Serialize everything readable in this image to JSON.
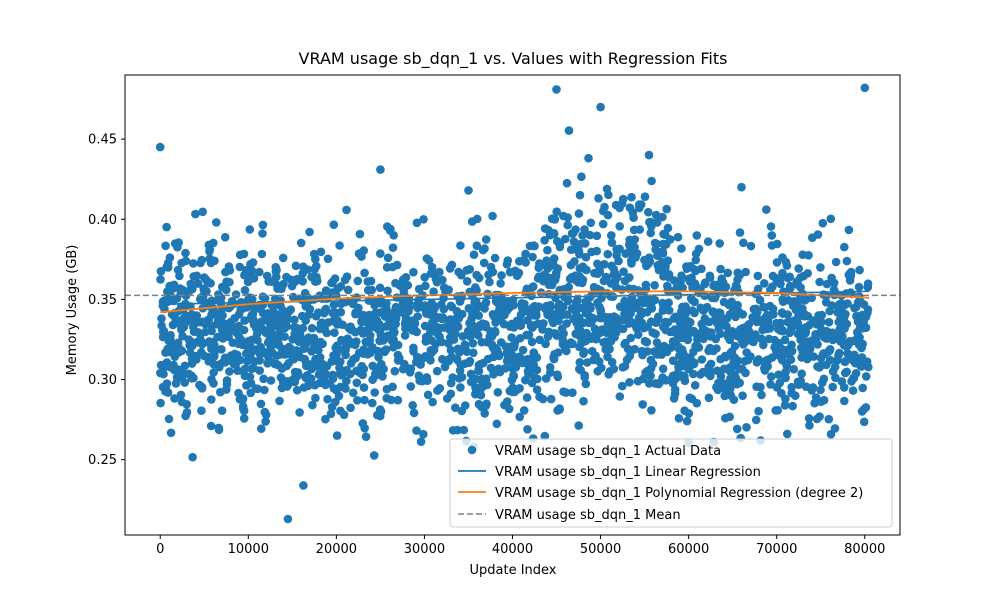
{
  "chart_data": {
    "type": "scatter",
    "title": "VRAM usage sb_dqn_1 vs. Values with Regression Fits",
    "xlabel": "Update Index",
    "ylabel": "Memory Usage (GB)",
    "xlim": [
      -4000,
      84000
    ],
    "ylim": [
      0.203,
      0.49
    ],
    "xticks": [
      0,
      10000,
      20000,
      30000,
      40000,
      50000,
      60000,
      70000,
      80000
    ],
    "xtick_labels": [
      "0",
      "10000",
      "20000",
      "30000",
      "40000",
      "50000",
      "60000",
      "70000",
      "80000"
    ],
    "yticks": [
      0.25,
      0.3,
      0.35,
      0.4,
      0.45
    ],
    "ytick_labels": [
      "0.25",
      "0.30",
      "0.35",
      "0.40",
      "0.45"
    ],
    "grid": false,
    "legend_position": "lower-right",
    "colors": {
      "scatter": "#1f77b4",
      "linear": "#1f77b4",
      "poly": "#ff7f0e",
      "mean": "#808080"
    },
    "series": [
      {
        "name": "VRAM usage sb_dqn_1 Actual Data",
        "kind": "scatter",
        "x_range": [
          0,
          80500
        ],
        "approx_points": 2400,
        "center": 0.33,
        "spread": [
          0.24,
          0.42
        ],
        "notable_points": [
          [
            14500,
            0.213
          ],
          [
            45000,
            0.481
          ],
          [
            80000,
            0.482
          ],
          [
            0,
            0.445
          ],
          [
            50000,
            0.47
          ],
          [
            55500,
            0.44
          ],
          [
            35000,
            0.418
          ],
          [
            25000,
            0.431
          ],
          [
            66000,
            0.42
          ]
        ]
      },
      {
        "name": "VRAM usage sb_dqn_1 Linear Regression",
        "kind": "line",
        "x": [
          0,
          80500
        ],
        "y": [
          0.347,
          0.355
        ]
      },
      {
        "name": "VRAM usage sb_dqn_1 Polynomial Regression (degree 2)",
        "kind": "line",
        "x": [
          0,
          10000,
          20000,
          30000,
          40000,
          50000,
          60000,
          70000,
          80500
        ],
        "y": [
          0.342,
          0.347,
          0.3505,
          0.3525,
          0.354,
          0.355,
          0.355,
          0.354,
          0.351
        ]
      },
      {
        "name": "VRAM usage sb_dqn_1 Mean",
        "kind": "hline",
        "y": 0.3525
      }
    ]
  }
}
